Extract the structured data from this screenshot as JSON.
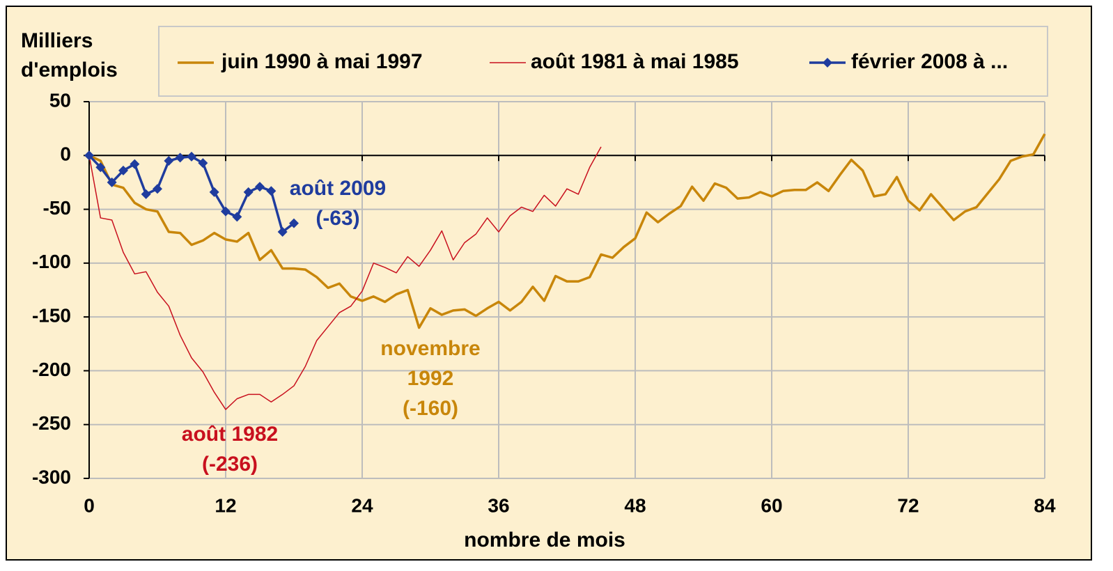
{
  "chart_data": {
    "type": "line",
    "ylabel": [
      "Milliers",
      "d'emplois"
    ],
    "xlabel": "nombre de mois",
    "xlim": [
      0,
      84
    ],
    "ylim": [
      -300,
      50
    ],
    "xticks": [
      0,
      12,
      24,
      36,
      48,
      60,
      72,
      84
    ],
    "yticks": [
      -300,
      -250,
      -200,
      -150,
      -100,
      -50,
      0,
      50
    ],
    "grid": true,
    "legend": "top",
    "series": [
      {
        "name": "juin 1990 à mai 1997",
        "color": "#c8860a",
        "width": 3.5,
        "marker": false,
        "values": [
          0,
          -5,
          -27,
          -30,
          -44,
          -50,
          -52,
          -71,
          -72,
          -83,
          -79,
          -72,
          -78,
          -80,
          -72,
          -97,
          -88,
          -105,
          -105,
          -106,
          -113,
          -123,
          -119,
          -131,
          -135,
          -131,
          -136,
          -129,
          -125,
          -160,
          -142,
          -148,
          -144,
          -143,
          -149,
          -142,
          -136,
          -144,
          -136,
          -122,
          -135,
          -112,
          -117,
          -117,
          -113,
          -92,
          -95,
          -85,
          -77,
          -53,
          -62,
          -54,
          -47,
          -29,
          -42,
          -26,
          -30,
          -40,
          -39,
          -34,
          -38,
          -33,
          -32,
          -32,
          -25,
          -33,
          -18,
          -4,
          -14,
          -38,
          -36,
          -20,
          -42,
          -51,
          -36,
          -48,
          -60,
          -52,
          -48,
          -35,
          -22,
          -5,
          -1,
          1,
          20
        ]
      },
      {
        "name": "août 1981 à mai 1985",
        "color": "#c8101e",
        "width": 1.5,
        "marker": false,
        "values": [
          0,
          -58,
          -60,
          -90,
          -110,
          -108,
          -127,
          -140,
          -167,
          -188,
          -201,
          -220,
          -236,
          -226,
          -222,
          -222,
          -229,
          -222,
          -214,
          -196,
          -172,
          -159,
          -146,
          -140,
          -126,
          -100,
          -104,
          -109,
          -94,
          -103,
          -88,
          -70,
          -97,
          -81,
          -73,
          -58,
          -71,
          -56,
          -48,
          -52,
          -37,
          -47,
          -31,
          -36,
          -11,
          8
        ]
      },
      {
        "name": "février 2008 à ...",
        "color": "#1f3c9e",
        "width": 3.5,
        "marker": true,
        "values": [
          0,
          -11,
          -25,
          -14,
          -8,
          -36,
          -31,
          -5,
          -2,
          -1,
          -7,
          -34,
          -52,
          -57,
          -34,
          -29,
          -33,
          -71,
          -63
        ]
      }
    ],
    "annotations": [
      {
        "lines": [
          "août 2009",
          "(-63)"
        ],
        "color": "#1f3c9e"
      },
      {
        "lines": [
          "novembre",
          "1992",
          "(-160)"
        ],
        "color": "#c8860a"
      },
      {
        "lines": [
          "août 1982",
          "(-236)"
        ],
        "color": "#c8101e"
      }
    ]
  }
}
